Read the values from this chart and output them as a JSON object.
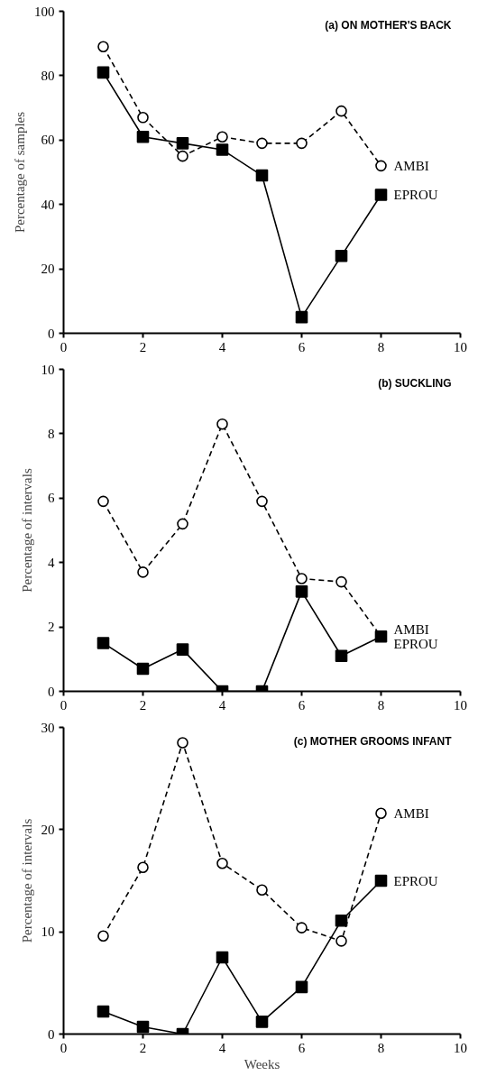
{
  "chart_data": [
    {
      "type": "line",
      "title": "(a) ON MOTHER'S BACK",
      "ylabel": "Percentage of samples",
      "x": [
        1,
        2,
        3,
        4,
        5,
        6,
        7,
        8
      ],
      "xlim": [
        0,
        10
      ],
      "xticks": [
        0,
        2,
        4,
        6,
        8,
        10
      ],
      "ylim": [
        0,
        100
      ],
      "yticks": [
        0,
        20,
        40,
        60,
        80,
        100
      ],
      "grid": false,
      "legend": false,
      "series": [
        {
          "name": "AMBI",
          "color": "#000000",
          "marker": "circle",
          "line_style": "dashed",
          "values": [
            89,
            67,
            55,
            61,
            59,
            59,
            69,
            52
          ]
        },
        {
          "name": "EPROU",
          "color": "#000000",
          "marker": "square",
          "line_style": "solid",
          "values": [
            81,
            61,
            59,
            57,
            49,
            5,
            24,
            43
          ]
        }
      ]
    },
    {
      "type": "line",
      "title": "(b) SUCKLING",
      "ylabel": "Percentage of intervals",
      "x": [
        1,
        2,
        3,
        4,
        5,
        6,
        7,
        8
      ],
      "xlim": [
        0,
        10
      ],
      "xticks": [
        0,
        2,
        4,
        6,
        8,
        10
      ],
      "ylim": [
        0,
        10
      ],
      "yticks": [
        0,
        2,
        4,
        6,
        8,
        10
      ],
      "grid": false,
      "legend": false,
      "series": [
        {
          "name": "AMBI",
          "color": "#000000",
          "marker": "circle",
          "line_style": "dashed",
          "values": [
            5.9,
            3.7,
            5.2,
            8.3,
            5.9,
            3.5,
            3.4,
            1.7
          ]
        },
        {
          "name": "EPROU",
          "color": "#000000",
          "marker": "square",
          "line_style": "solid",
          "values": [
            1.5,
            0.7,
            1.3,
            0,
            0,
            3.1,
            1.1,
            1.7
          ]
        }
      ]
    },
    {
      "type": "line",
      "title": "(c) MOTHER GROOMS INFANT",
      "xlabel": "Weeks",
      "ylabel": "Percentage of intervals",
      "x": [
        1,
        2,
        3,
        4,
        5,
        6,
        7,
        8
      ],
      "xlim": [
        0,
        10
      ],
      "xticks": [
        0,
        2,
        4,
        6,
        8,
        10
      ],
      "ylim": [
        0,
        30
      ],
      "yticks": [
        0,
        10,
        20,
        30
      ],
      "grid": false,
      "legend": false,
      "series": [
        {
          "name": "AMBI",
          "color": "#000000",
          "marker": "circle",
          "line_style": "dashed",
          "values": [
            9.6,
            16.3,
            28.5,
            16.7,
            14.1,
            10.4,
            9.1,
            21.6
          ]
        },
        {
          "name": "EPROU",
          "color": "#000000",
          "marker": "square",
          "line_style": "solid",
          "values": [
            2.2,
            0.7,
            0,
            7.5,
            1.2,
            4.6,
            11.1,
            15.0
          ]
        }
      ]
    }
  ]
}
